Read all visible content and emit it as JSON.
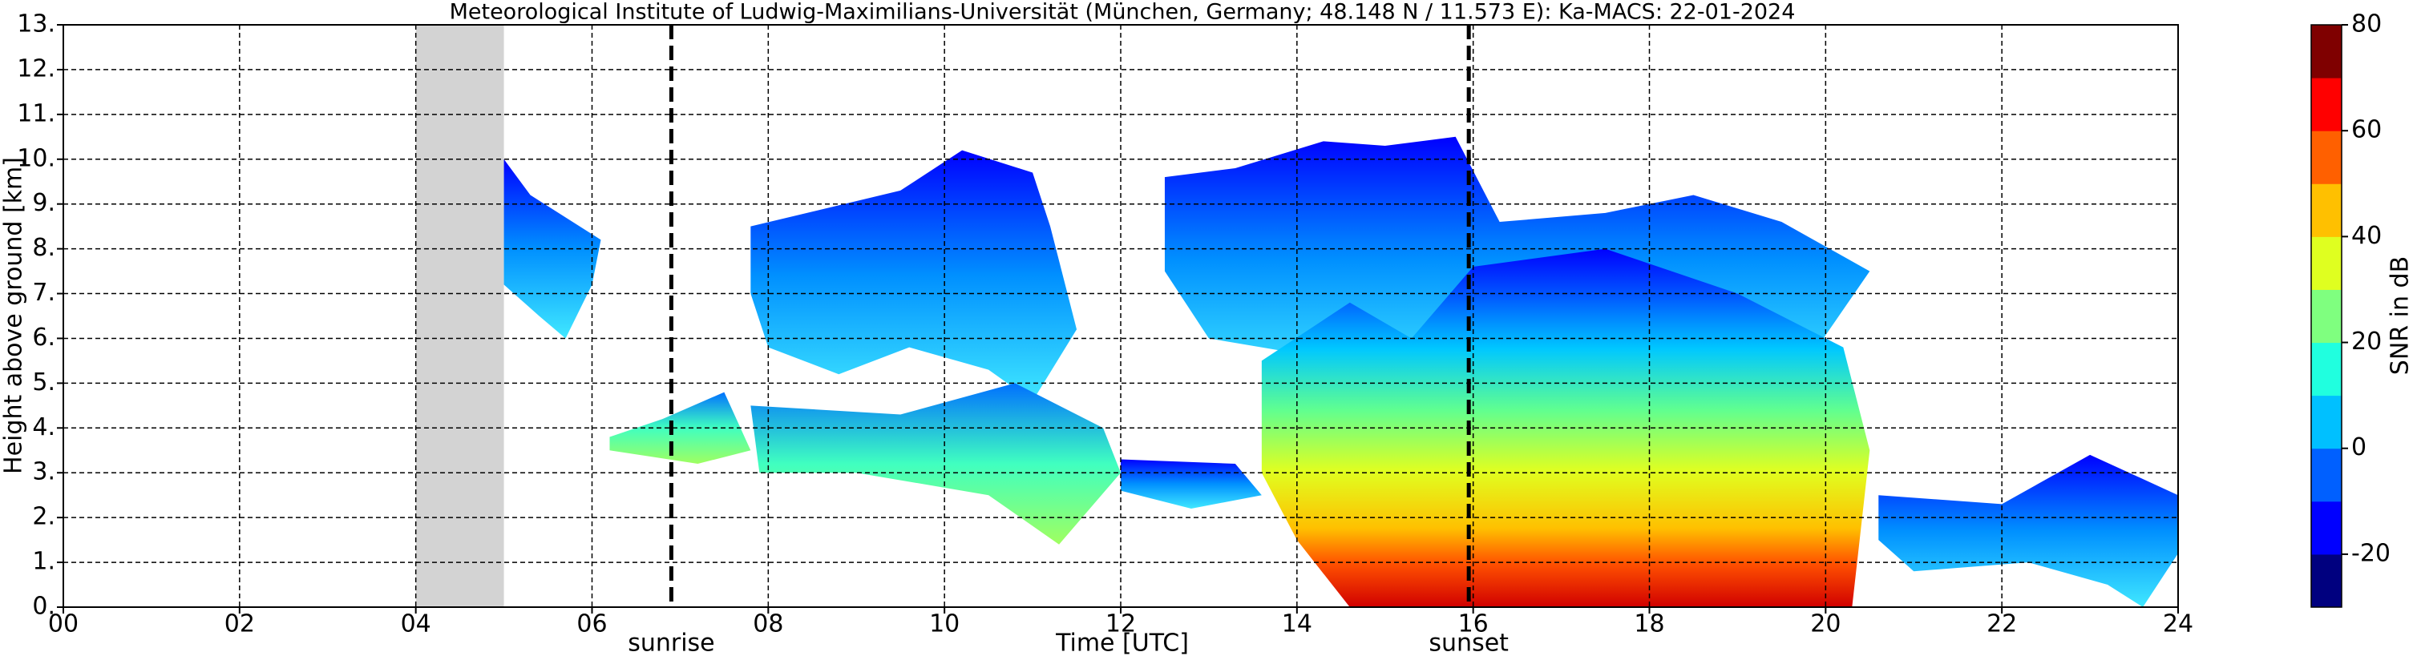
{
  "chart_data": {
    "type": "heatmap",
    "title": "Meteorological Institute of Ludwig-Maximilians-Universität (München, Germany; 48.148 N / 11.573 E):    Ka-MACS: 22-01-2024",
    "xlabel": "Time [UTC]",
    "ylabel": "Height above ground [km]",
    "xlim": [
      0,
      24
    ],
    "ylim": [
      0,
      13
    ],
    "xticks": [
      {
        "value": 0,
        "label": "00"
      },
      {
        "value": 2,
        "label": "02"
      },
      {
        "value": 4,
        "label": "04"
      },
      {
        "value": 6,
        "label": "06"
      },
      {
        "value": 8,
        "label": "08"
      },
      10,
      12,
      14,
      16,
      18,
      20,
      22,
      24
    ],
    "yticks": [
      {
        "value": 0,
        "label": "0."
      },
      {
        "value": 1,
        "label": "1."
      },
      {
        "value": 2,
        "label": "2."
      },
      {
        "value": 3,
        "label": "3."
      },
      {
        "value": 4,
        "label": "4."
      },
      {
        "value": 5,
        "label": "5."
      },
      {
        "value": 6,
        "label": "6."
      },
      {
        "value": 7,
        "label": "7."
      },
      {
        "value": 8,
        "label": "8."
      },
      {
        "value": 9,
        "label": "9."
      },
      {
        "value": 10,
        "label": "10."
      },
      {
        "value": 11,
        "label": "11."
      },
      {
        "value": 12,
        "label": "12."
      },
      {
        "value": 13,
        "label": "13."
      }
    ],
    "grid": true,
    "shaded_x": [
      4,
      5
    ],
    "shaded_color": "#d3d3d3",
    "annotations": [
      {
        "text": "sunrise",
        "x": 6.9
      },
      {
        "text": "sunset",
        "x": 15.95
      }
    ],
    "colorbar": {
      "label": "SNR in dB",
      "lim": [
        -30,
        80
      ],
      "ticks": [
        -20,
        0,
        20,
        40,
        60,
        80
      ],
      "colors": [
        "#00007f",
        "#0000ff",
        "#0060ff",
        "#00c0ff",
        "#20ffdf",
        "#7fff7f",
        "#dfff20",
        "#ffc000",
        "#ff6000",
        "#ff0000",
        "#7f0000"
      ]
    }
  }
}
